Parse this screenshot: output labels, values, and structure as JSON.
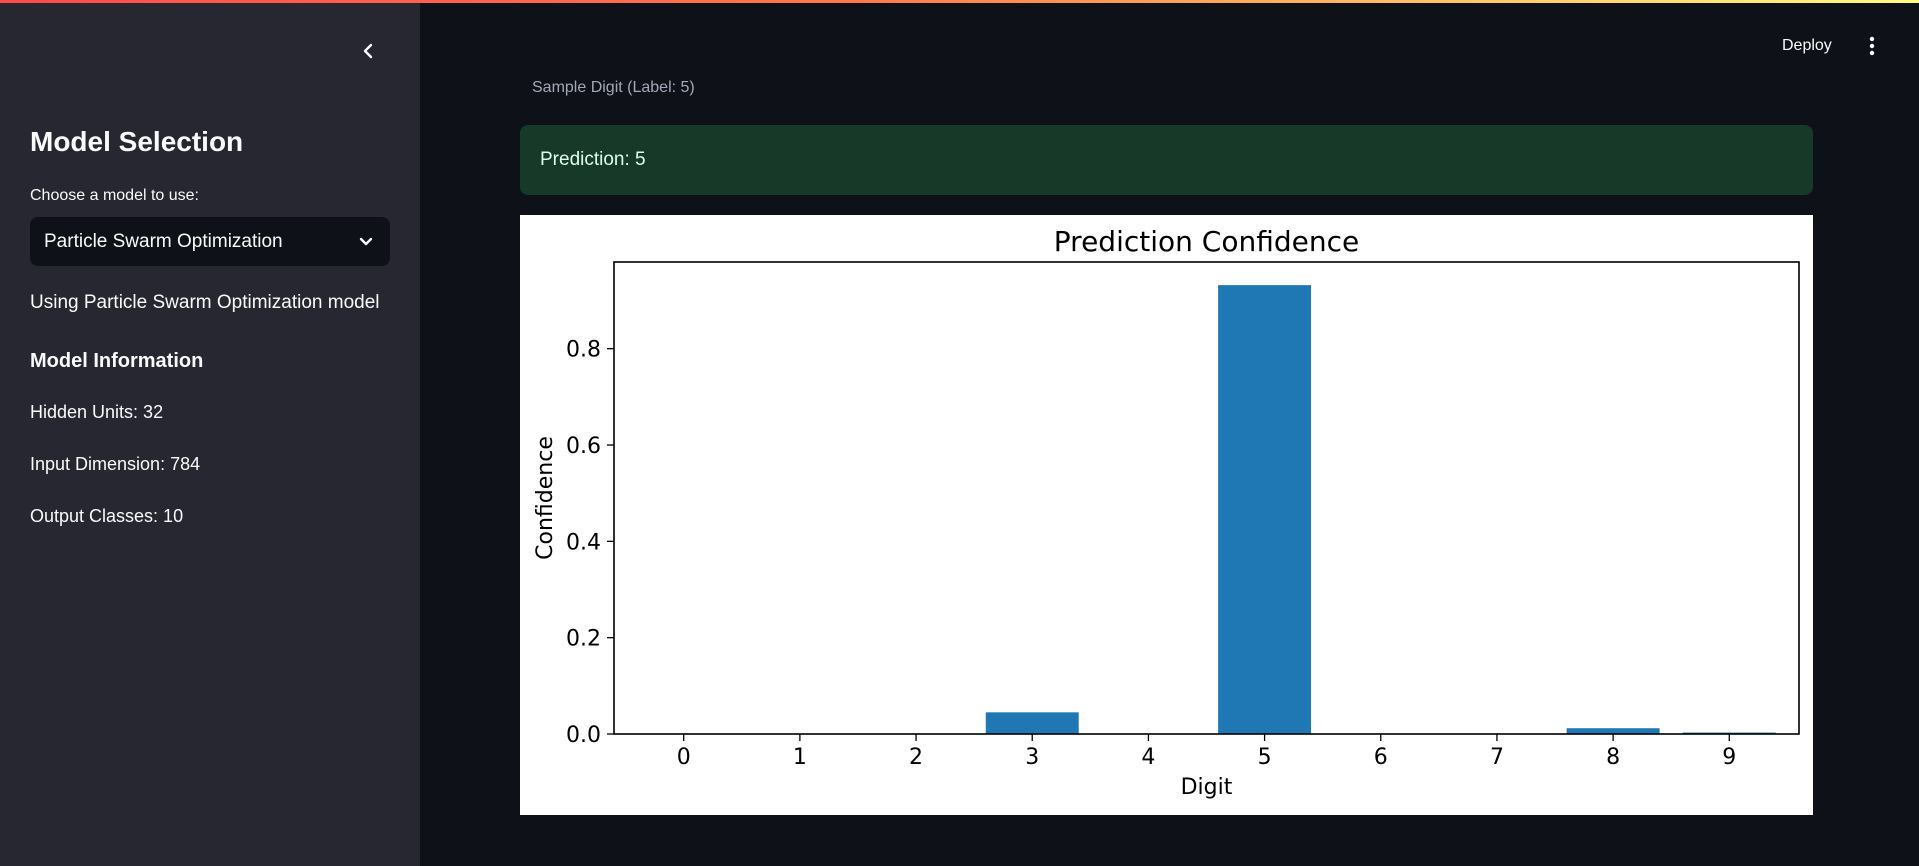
{
  "sidebar": {
    "collapse_icon": "chevron-left-icon",
    "title": "Model Selection",
    "select_label": "Choose a model to use:",
    "select_value": "Particle Swarm Optimization",
    "select_icon": "chevron-down-icon",
    "using_text": "Using Particle Swarm Optimization model",
    "info_title": "Model Information",
    "stats": [
      "Hidden Units: 32",
      "Input Dimension: 784",
      "Output Classes: 10"
    ]
  },
  "header": {
    "deploy_label": "Deploy",
    "menu_icon": "kebab-menu-icon"
  },
  "main": {
    "caption": "Sample Digit (Label: 5)",
    "prediction_text": "Prediction: 5"
  },
  "colors": {
    "app_background": "#0e1117",
    "sidebar_background": "#262730",
    "success_background": "#173928",
    "bar_color": "#1f77b4"
  },
  "chart_data": {
    "type": "bar",
    "title": "Prediction Confidence",
    "xlabel": "Digit",
    "ylabel": "Confidence",
    "categories": [
      "0",
      "1",
      "2",
      "3",
      "4",
      "5",
      "6",
      "7",
      "8",
      "9"
    ],
    "values": [
      0.0,
      0.0,
      0.0,
      0.045,
      0.0,
      0.932,
      0.0,
      0.0,
      0.012,
      0.003
    ],
    "yticks": [
      "0.0",
      "0.2",
      "0.4",
      "0.6",
      "0.8"
    ],
    "ylim": [
      0,
      0.98
    ],
    "grid": false,
    "legend": "none"
  }
}
